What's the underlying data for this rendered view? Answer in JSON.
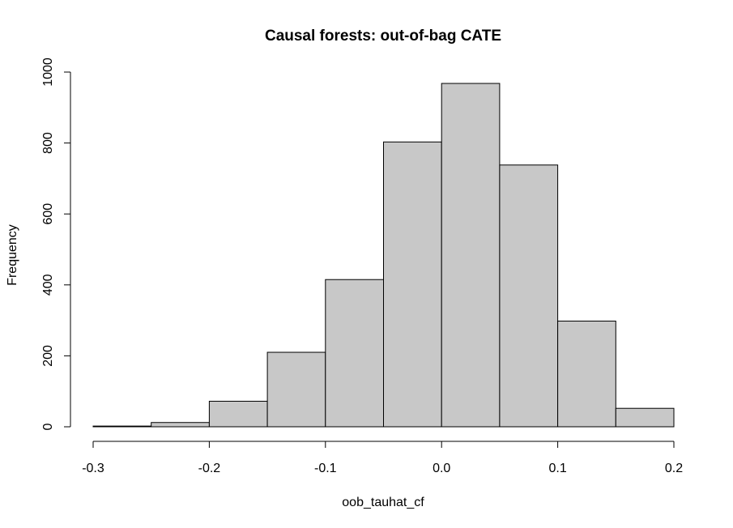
{
  "chart_data": {
    "type": "bar",
    "subtype": "histogram",
    "title": "Causal forests: out-of-bag CATE",
    "xlabel": "oob_tauhat_cf",
    "ylabel": "Frequency",
    "bin_edges": [
      -0.3,
      -0.25,
      -0.2,
      -0.15,
      -0.1,
      -0.05,
      0.0,
      0.05,
      0.1,
      0.15,
      0.2
    ],
    "values": [
      2,
      12,
      72,
      210,
      415,
      803,
      968,
      738,
      298,
      52
    ],
    "xlim": [
      -0.3,
      0.2
    ],
    "ylim": [
      0,
      1000
    ],
    "xticks": [
      -0.3,
      -0.2,
      -0.1,
      0.0,
      0.1,
      0.2
    ],
    "xtick_labels": [
      "-0.3",
      "-0.2",
      "-0.1",
      "0.0",
      "0.1",
      "0.2"
    ],
    "yticks": [
      0,
      200,
      400,
      600,
      800,
      1000
    ],
    "ytick_labels": [
      "0",
      "200",
      "400",
      "600",
      "800",
      "1000"
    ],
    "bar_fill": "#c8c8c8",
    "bar_stroke": "#000000",
    "grid": false
  }
}
